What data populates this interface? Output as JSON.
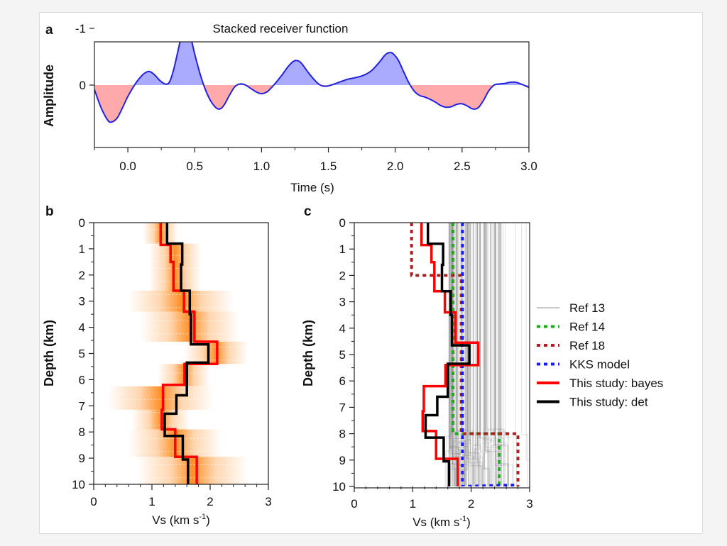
{
  "chart_data": [
    {
      "panel": "a",
      "type": "area",
      "title": "Stacked receiver function",
      "xlabel": "Time (s)",
      "ylabel": "Amplitude",
      "xlim": [
        -0.25,
        3.0
      ],
      "ylim": [
        -1.05,
        0.78
      ],
      "xticks": [
        "0.0",
        "0.5",
        "1.0",
        "1.5",
        "2.0",
        "2.5",
        "3.0"
      ],
      "xtick_values": [
        0.0,
        0.5,
        1.0,
        1.5,
        2.0,
        2.5,
        3.0
      ],
      "yticks": [
        "0",
        "-1"
      ],
      "ytick_values": [
        0,
        -1
      ],
      "positive_fill": "#aaaaff",
      "negative_fill": "#ffaaaa",
      "line_color": "#2222dd",
      "series": [
        {
          "name": "Stacked receiver function",
          "x": [
            -0.25,
            -0.2,
            -0.15,
            -0.12,
            -0.08,
            -0.04,
            0.0,
            0.05,
            0.08,
            0.12,
            0.16,
            0.2,
            0.24,
            0.28,
            0.31,
            0.34,
            0.37,
            0.4,
            0.43,
            0.45,
            0.47,
            0.5,
            0.54,
            0.58,
            0.62,
            0.66,
            0.69,
            0.72,
            0.76,
            0.8,
            0.84,
            0.88,
            0.92,
            0.96,
            1.0,
            1.04,
            1.08,
            1.12,
            1.16,
            1.2,
            1.24,
            1.27,
            1.3,
            1.35,
            1.4,
            1.44,
            1.48,
            1.52,
            1.58,
            1.64,
            1.7,
            1.76,
            1.82,
            1.88,
            1.92,
            1.95,
            1.98,
            2.02,
            2.06,
            2.1,
            2.14,
            2.18,
            2.22,
            2.26,
            2.3,
            2.34,
            2.38,
            2.42,
            2.46,
            2.5,
            2.54,
            2.58,
            2.62,
            2.66,
            2.7,
            2.74,
            2.78,
            2.82,
            2.86,
            2.9,
            2.94,
            3.0
          ],
          "y": [
            0.08,
            0.4,
            0.62,
            0.65,
            0.58,
            0.4,
            0.2,
            0.0,
            -0.1,
            -0.2,
            -0.24,
            -0.18,
            -0.08,
            -0.02,
            -0.05,
            -0.25,
            -0.55,
            -0.85,
            -1.0,
            -0.98,
            -0.85,
            -0.55,
            -0.2,
            0.08,
            0.28,
            0.4,
            0.42,
            0.35,
            0.18,
            0.03,
            -0.02,
            0.0,
            0.06,
            0.12,
            0.15,
            0.12,
            0.03,
            -0.08,
            -0.2,
            -0.33,
            -0.42,
            -0.43,
            -0.38,
            -0.22,
            -0.08,
            0.0,
            0.02,
            0.0,
            -0.05,
            -0.1,
            -0.13,
            -0.17,
            -0.25,
            -0.4,
            -0.52,
            -0.57,
            -0.56,
            -0.45,
            -0.25,
            -0.05,
            0.1,
            0.18,
            0.21,
            0.25,
            0.3,
            0.36,
            0.39,
            0.38,
            0.34,
            0.33,
            0.37,
            0.42,
            0.4,
            0.27,
            0.1,
            0.0,
            -0.02,
            -0.03,
            -0.05,
            -0.05,
            -0.02,
            0.04
          ]
        }
      ]
    },
    {
      "panel": "b",
      "type": "line",
      "xlabel": "Vs (km s",
      "xlabel_sup": "-1",
      "xlabel_close": ")",
      "ylabel": "Depth (km)",
      "xlim": [
        0,
        3
      ],
      "ylim": [
        10,
        0
      ],
      "xticks": [
        "0",
        "1",
        "2",
        "3"
      ],
      "xtick_values": [
        0,
        1,
        2,
        3
      ],
      "yticks": [
        "0",
        "1",
        "2",
        "3",
        "4",
        "5",
        "6",
        "7",
        "8",
        "9",
        "10"
      ],
      "ytick_values": [
        0,
        1,
        2,
        3,
        4,
        5,
        6,
        7,
        8,
        9,
        10
      ],
      "posterior_bands": [
        {
          "top": 0.0,
          "bottom": 0.8,
          "center": 1.15,
          "halfwidth": 0.3
        },
        {
          "top": 0.8,
          "bottom": 2.6,
          "center": 1.4,
          "halfwidth": 0.45
        },
        {
          "top": 2.6,
          "bottom": 3.4,
          "center": 1.5,
          "halfwidth": 0.9
        },
        {
          "top": 3.4,
          "bottom": 4.55,
          "center": 1.65,
          "halfwidth": 0.85
        },
        {
          "top": 4.55,
          "bottom": 5.4,
          "center": 2.1,
          "halfwidth": 0.55
        },
        {
          "top": 5.4,
          "bottom": 6.25,
          "center": 1.55,
          "halfwidth": 0.45
        },
        {
          "top": 6.25,
          "bottom": 7.15,
          "center": 1.15,
          "halfwidth": 0.9
        },
        {
          "top": 7.15,
          "bottom": 7.9,
          "center": 1.15,
          "halfwidth": 0.5
        },
        {
          "top": 7.9,
          "bottom": 8.95,
          "center": 1.4,
          "halfwidth": 0.8
        },
        {
          "top": 8.95,
          "bottom": 10.0,
          "center": 1.7,
          "halfwidth": 0.95
        }
      ],
      "series": [
        {
          "name": "This study: bayes",
          "color": "#ff0000",
          "layers": [
            {
              "top": 0.0,
              "bottom": 0.85,
              "vs": 1.15
            },
            {
              "top": 0.85,
              "bottom": 1.5,
              "vs": 1.32
            },
            {
              "top": 1.5,
              "bottom": 2.6,
              "vs": 1.37
            },
            {
              "top": 2.6,
              "bottom": 3.4,
              "vs": 1.55
            },
            {
              "top": 3.4,
              "bottom": 4.55,
              "vs": 1.73
            },
            {
              "top": 4.55,
              "bottom": 5.4,
              "vs": 2.12
            },
            {
              "top": 5.4,
              "bottom": 6.2,
              "vs": 1.56
            },
            {
              "top": 6.2,
              "bottom": 7.15,
              "vs": 1.19
            },
            {
              "top": 7.15,
              "bottom": 7.9,
              "vs": 1.17
            },
            {
              "top": 7.9,
              "bottom": 8.95,
              "vs": 1.4
            },
            {
              "top": 8.95,
              "bottom": 10.0,
              "vs": 1.77
            }
          ]
        },
        {
          "name": "This study: det",
          "color": "#000000",
          "layers": [
            {
              "top": 0.0,
              "bottom": 0.8,
              "vs": 1.26
            },
            {
              "top": 0.8,
              "bottom": 1.6,
              "vs": 1.52
            },
            {
              "top": 1.6,
              "bottom": 2.6,
              "vs": 1.5
            },
            {
              "top": 2.6,
              "bottom": 3.5,
              "vs": 1.65
            },
            {
              "top": 3.5,
              "bottom": 4.65,
              "vs": 1.67
            },
            {
              "top": 4.65,
              "bottom": 5.35,
              "vs": 1.97
            },
            {
              "top": 5.35,
              "bottom": 6.6,
              "vs": 1.6
            },
            {
              "top": 6.6,
              "bottom": 7.3,
              "vs": 1.42
            },
            {
              "top": 7.3,
              "bottom": 8.15,
              "vs": 1.22
            },
            {
              "top": 8.15,
              "bottom": 9.05,
              "vs": 1.53
            },
            {
              "top": 9.05,
              "bottom": 10.0,
              "vs": 1.62
            }
          ]
        }
      ]
    },
    {
      "panel": "c",
      "type": "line",
      "xlabel": "Vs (km s",
      "xlabel_sup": "-1",
      "xlabel_close": ")",
      "ylabel": "Depth (km)",
      "xlim": [
        0,
        3
      ],
      "ylim": [
        10,
        0
      ],
      "xticks": [
        "0",
        "1",
        "2",
        "3"
      ],
      "xtick_values": [
        0,
        1,
        2,
        3
      ],
      "yticks": [
        "0",
        "1",
        "2",
        "3",
        "4",
        "5",
        "6",
        "7",
        "8",
        "9",
        "10"
      ],
      "ytick_values": [
        0,
        1,
        2,
        3,
        4,
        5,
        6,
        7,
        8,
        9,
        10
      ],
      "ref13_range": [
        1.62,
        2.95
      ],
      "legend_position": "right",
      "series": [
        {
          "name": "Ref 13",
          "color": "#c8c8c8",
          "style": "solid-thin",
          "note": "ensemble of many gray models between the given Vs range"
        },
        {
          "name": "Ref 14",
          "color": "#22aa22",
          "style": "dotted",
          "layers": [
            {
              "top": 0.0,
              "bottom": 8.0,
              "vs": 1.69
            },
            {
              "top": 8.0,
              "bottom": 10.0,
              "vs": 2.48
            }
          ]
        },
        {
          "name": "Ref 18",
          "color": "#aa2222",
          "style": "dotted",
          "layers": [
            {
              "top": 0.0,
              "bottom": 2.0,
              "vs": 0.98
            },
            {
              "top": 2.0,
              "bottom": 8.0,
              "vs": 1.83
            },
            {
              "top": 8.0,
              "bottom": 10.0,
              "vs": 2.8
            }
          ]
        },
        {
          "name": "KKS model",
          "color": "#1a1aff",
          "style": "dotted",
          "layers": [
            {
              "top": 0.0,
              "bottom": 10.0,
              "vs": 1.85
            }
          ],
          "bottom_to": 2.8
        },
        {
          "name": "This study: bayes",
          "color": "#ff0000",
          "style": "solid",
          "same_as_panel_b": true
        },
        {
          "name": "This study: det",
          "color": "#000000",
          "style": "solid",
          "same_as_panel_b": true
        }
      ]
    }
  ],
  "labels": {
    "panel_a": "a",
    "panel_b": "b",
    "panel_c": "c"
  },
  "legend": [
    {
      "label": "Ref 13",
      "color": "#c8c8c8",
      "style": "solid-thin"
    },
    {
      "label": "Ref 14",
      "color": "#22aa22",
      "style": "dotted"
    },
    {
      "label": "Ref 18",
      "color": "#aa2222",
      "style": "dotted"
    },
    {
      "label": "KKS model",
      "color": "#1a1aff",
      "style": "dotted"
    },
    {
      "label": "This study: bayes",
      "color": "#ff0000",
      "style": "solid"
    },
    {
      "label": "This study: det",
      "color": "#000000",
      "style": "solid"
    }
  ]
}
